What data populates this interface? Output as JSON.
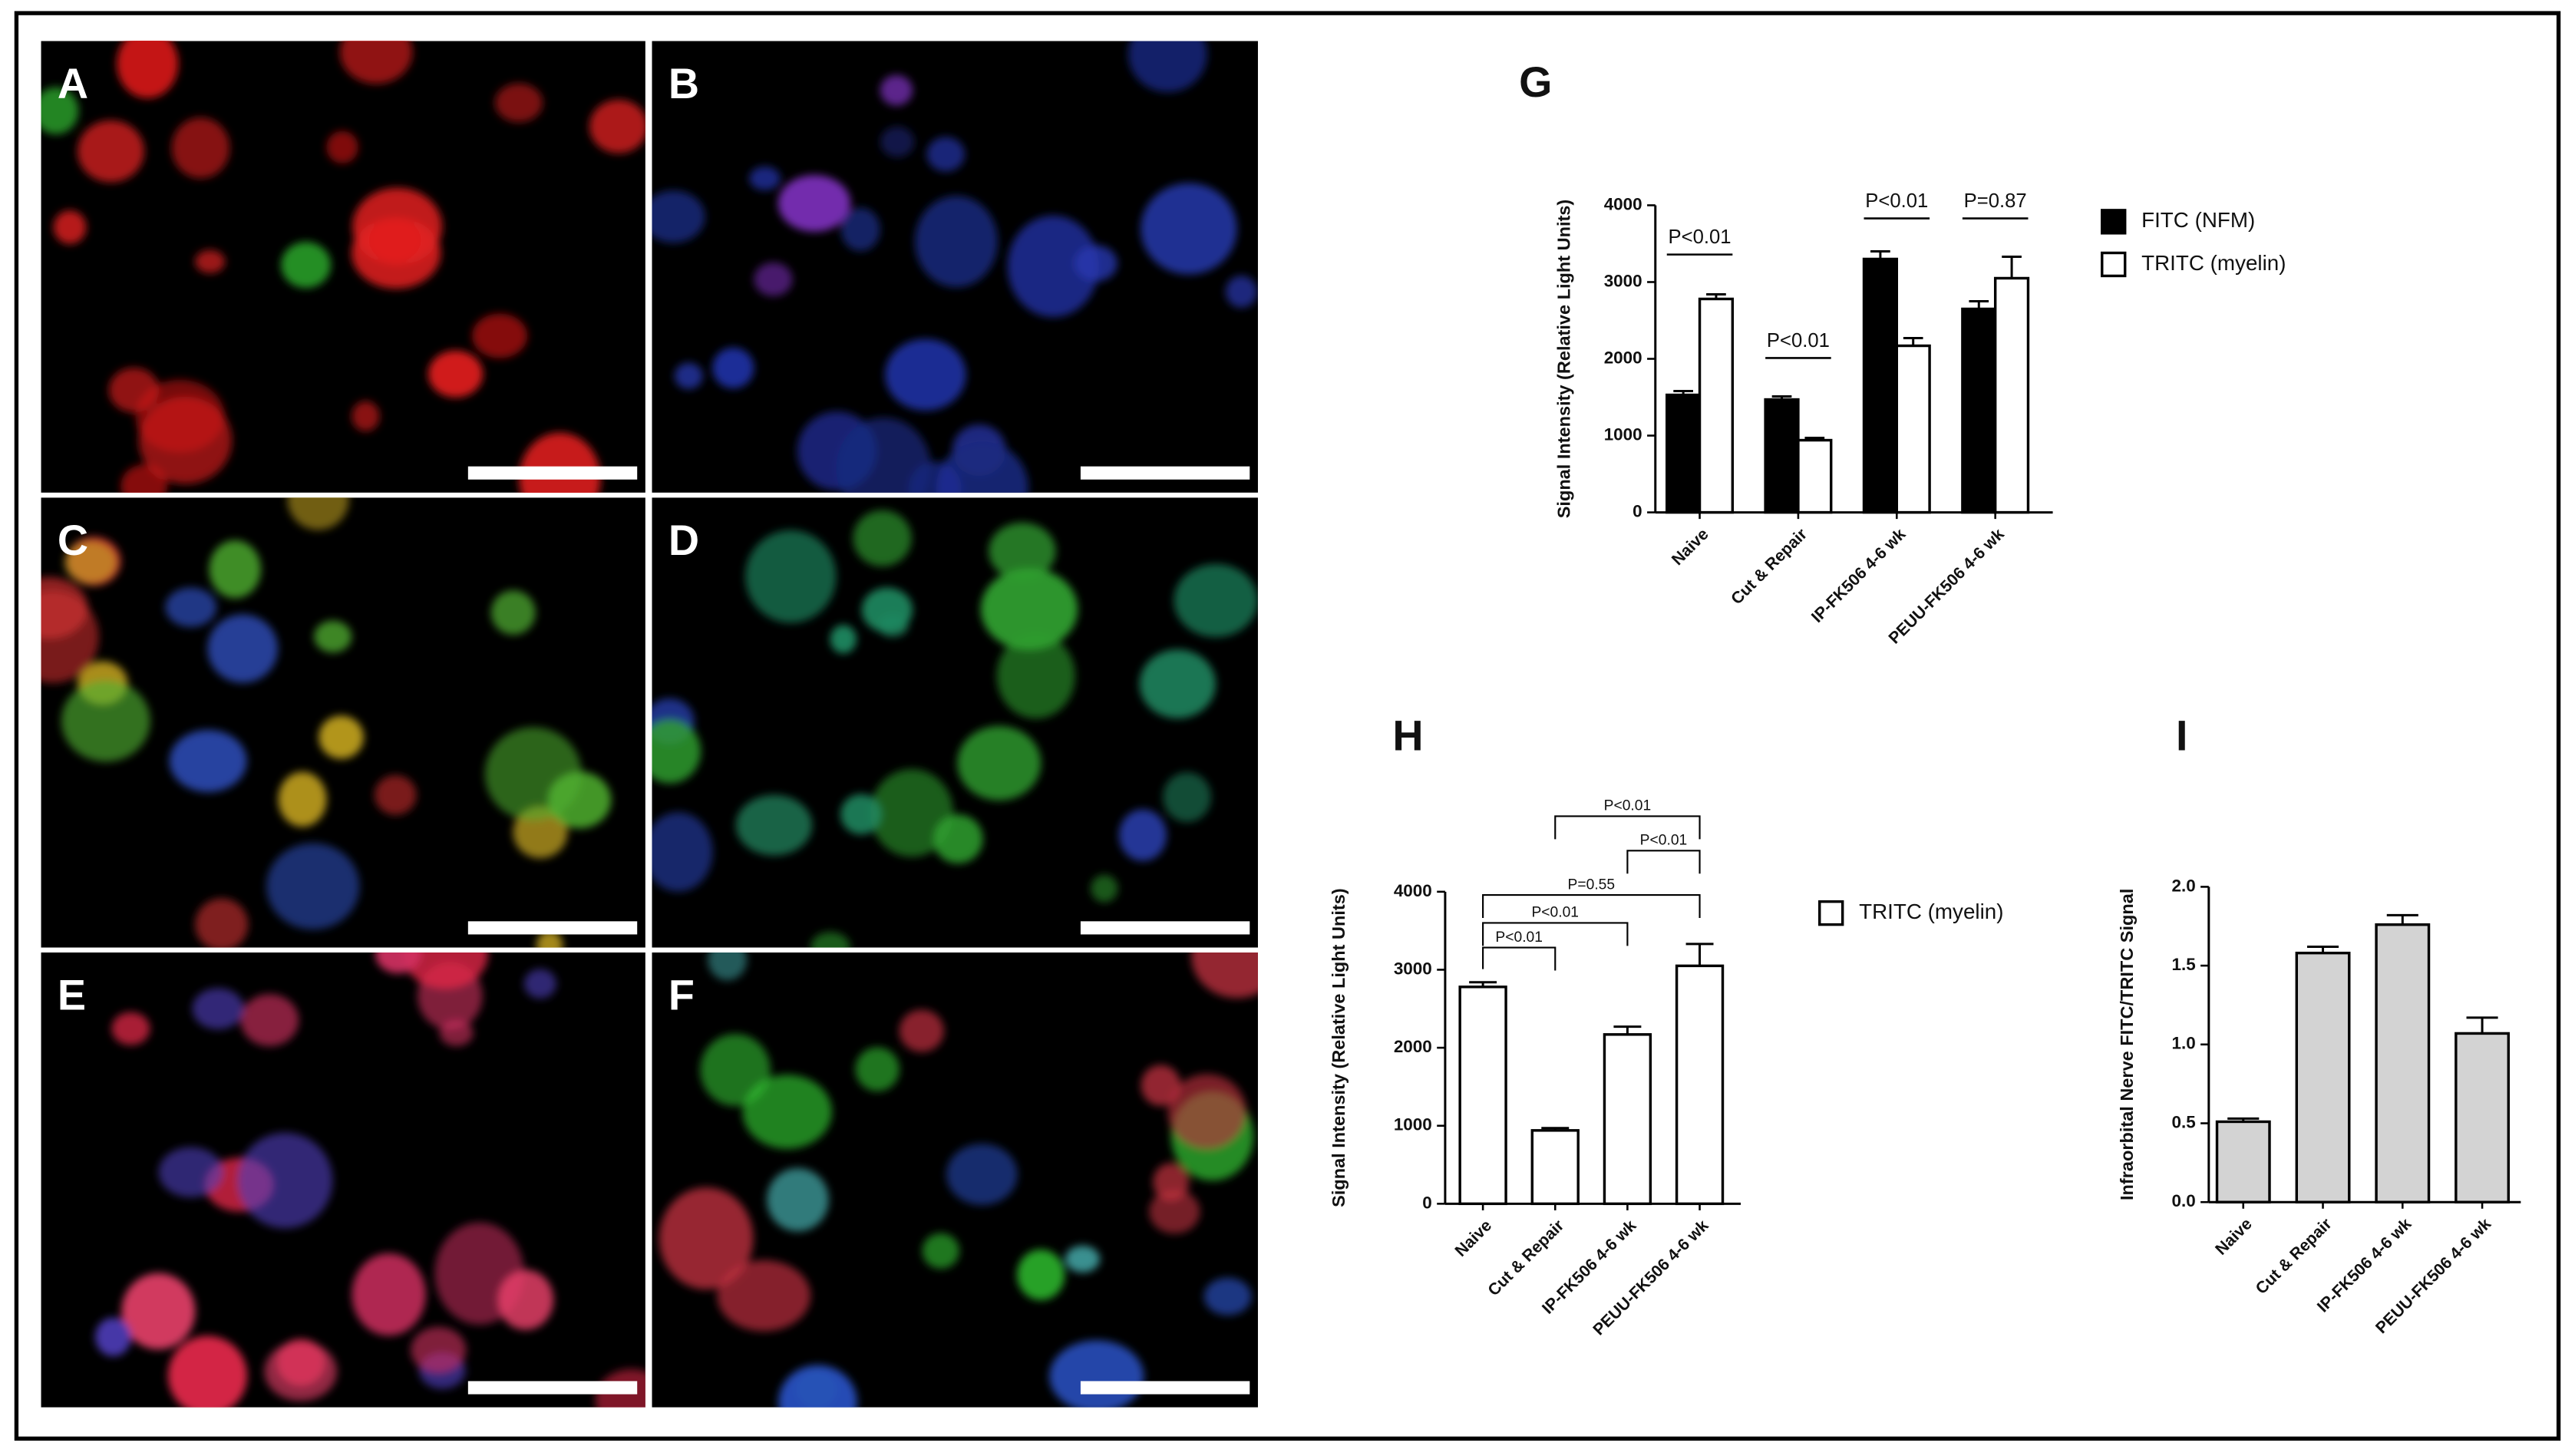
{
  "panels": {
    "labels": [
      "A",
      "B",
      "C",
      "D",
      "E",
      "F"
    ]
  },
  "chart_data": [
    {
      "type": "bar",
      "title": "G",
      "ylabel": "Signal Intensity (Relative Light Units)",
      "categories": [
        "Naive",
        "Cut & Repair",
        "IP-FK506 4-6 wk",
        "PEUU-FK506 4-6 wk"
      ],
      "series": [
        {
          "name": "FITC (NFM)",
          "color": "#000000",
          "values": [
            1530,
            1470,
            3300,
            2650
          ],
          "errors": [
            50,
            40,
            100,
            100
          ]
        },
        {
          "name": "TRITC (myelin)",
          "color": "#ffffff",
          "values": [
            2780,
            940,
            2170,
            3050
          ],
          "errors": [
            60,
            30,
            100,
            280
          ]
        }
      ],
      "ylim": [
        0,
        4000
      ],
      "yticks": [
        0,
        1000,
        2000,
        3000,
        4000
      ],
      "annotations": [
        "P<0.01",
        "P<0.01",
        "P<0.01",
        "P=0.87"
      ]
    },
    {
      "type": "bar",
      "title": "H",
      "ylabel": "Signal Intensity (Relative Light Units)",
      "categories": [
        "Naive",
        "Cut & Repair",
        "IP-FK506 4-6 wk",
        "PEUU-FK506 4-6 wk"
      ],
      "series": [
        {
          "name": "TRITC (myelin)",
          "color": "#ffffff",
          "values": [
            2780,
            940,
            2170,
            3050
          ],
          "errors": [
            60,
            30,
            100,
            280
          ]
        }
      ],
      "ylim": [
        0,
        4000
      ],
      "yticks": [
        0,
        1000,
        2000,
        3000,
        4000
      ],
      "annotations": [
        "P<0.01",
        "P<0.01",
        "P=0.55",
        "P<0.01",
        "P<0.01"
      ]
    },
    {
      "type": "bar",
      "title": "I",
      "ylabel": "Infraorbital Nerve FITC/TRITC Signal",
      "categories": [
        "Naive",
        "Cut & Repair",
        "IP-FK506 4-6 wk",
        "PEUU-FK506 4-6 wk"
      ],
      "values": [
        0.51,
        1.58,
        1.76,
        1.07
      ],
      "errors": [
        0.02,
        0.04,
        0.06,
        0.1
      ],
      "color": "#d3d3d3",
      "ylim": [
        0,
        2
      ],
      "yticks": [
        {
          "value": 0,
          "label": "0.0"
        },
        0.5,
        {
          "value": 1,
          "label": "1.0"
        },
        1.5,
        {
          "value": 2,
          "label": "2.0"
        }
      ]
    }
  ]
}
